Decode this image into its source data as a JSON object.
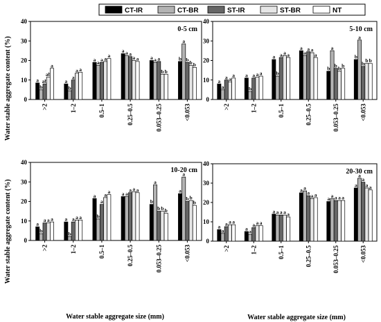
{
  "figure": {
    "ylabel": "Water stable aggregate content (%)",
    "xlabel": "Water stable aggregate size (mm)"
  },
  "legend": [
    {
      "name": "CT-IR",
      "fill": "#000000"
    },
    {
      "name": "CT-BR",
      "fill": "#b3b3b3"
    },
    {
      "name": "ST-IR",
      "fill": "#666666"
    },
    {
      "name": "ST-BR",
      "fill": "#e6e6e6"
    },
    {
      "name": "NT",
      "fill": "#ffffff"
    }
  ],
  "chart_data": [
    {
      "type": "bar",
      "title": "0-5 cm",
      "categories": [
        ">2",
        "1–2",
        "0.5–1",
        "0.25–0.5",
        "0.053–0.25",
        "<0.053"
      ],
      "ylim": [
        0,
        40
      ],
      "yticks": [
        0,
        10,
        20,
        30,
        40
      ],
      "series": [
        {
          "name": "CT-IR",
          "values": [
            8.5,
            8.0,
            19.0,
            23.5,
            20.0,
            19.5
          ],
          "letters": [
            "a",
            "a",
            "a",
            "a",
            "a",
            "b"
          ]
        },
        {
          "name": "CT-BR",
          "values": [
            5.0,
            4.5,
            17.5,
            22.5,
            19.0,
            28.5
          ],
          "letters": [
            "b",
            "b",
            "a",
            "a",
            "a",
            "a"
          ]
        },
        {
          "name": "ST-IR",
          "values": [
            8.0,
            10.0,
            19.0,
            22.0,
            19.5,
            19.0
          ],
          "letters": [
            "ab",
            "a",
            "a",
            "a",
            "a",
            "b"
          ]
        },
        {
          "name": "ST-BR",
          "values": [
            11.5,
            13.5,
            19.5,
            20.0,
            13.0,
            17.5
          ],
          "letters": [
            "ab",
            "a",
            "a",
            "a",
            "b",
            "b"
          ]
        },
        {
          "name": "NT",
          "values": [
            16.0,
            14.0,
            21.0,
            19.5,
            13.0,
            16.5
          ],
          "letters": [
            "a",
            "a",
            "a",
            "a",
            "b",
            "b"
          ]
        }
      ]
    },
    {
      "type": "bar",
      "title": "5-10 cm",
      "categories": [
        ">2",
        "1–2",
        "0.5–1",
        "0.25–0.5",
        "0.053–0.25",
        "<0.053"
      ],
      "ylim": [
        0,
        40
      ],
      "yticks": [
        0,
        10,
        20,
        30,
        40
      ],
      "series": [
        {
          "name": "CT-IR",
          "values": [
            8.0,
            11.0,
            20.5,
            25.0,
            14.5,
            20.5
          ],
          "letters": [
            "a",
            "a",
            "a",
            "a",
            "b",
            "b"
          ]
        },
        {
          "name": "CT-BR",
          "values": [
            5.0,
            4.0,
            12.0,
            22.5,
            25.0,
            30.5
          ],
          "letters": [
            "a",
            "b",
            "b",
            "a",
            "a",
            "a"
          ]
        },
        {
          "name": "ST-IR",
          "values": [
            10.0,
            11.0,
            21.5,
            24.5,
            16.0,
            17.0
          ],
          "letters": [
            "a",
            "a",
            "a",
            "a",
            "b",
            "b"
          ]
        },
        {
          "name": "ST-BR",
          "values": [
            9.0,
            11.5,
            22.5,
            24.0,
            14.5,
            18.5
          ],
          "letters": [
            "a",
            "a",
            "a",
            "a",
            "b",
            "b"
          ]
        },
        {
          "name": "NT",
          "values": [
            11.0,
            12.0,
            21.5,
            21.5,
            16.0,
            18.5
          ],
          "letters": [
            "a",
            "a",
            "a",
            "a",
            "b",
            "b"
          ]
        }
      ]
    },
    {
      "type": "bar",
      "title": "10-20 cm",
      "categories": [
        ">2",
        "1–2",
        "0.5–1",
        "0.25–0.5",
        "0.053–0.25",
        "<0.053"
      ],
      "ylim": [
        0,
        40
      ],
      "yticks": [
        0,
        10,
        20,
        30,
        40
      ],
      "series": [
        {
          "name": "CT-IR",
          "values": [
            7.0,
            9.5,
            21.5,
            22.5,
            18.5,
            24.0
          ],
          "letters": [
            "a",
            "a",
            "a",
            "a",
            "b",
            "a"
          ]
        },
        {
          "name": "CT-BR",
          "values": [
            3.5,
            2.0,
            11.0,
            22.5,
            28.5,
            32.5
          ],
          "letters": [
            "b",
            "b",
            "b",
            "a",
            "a",
            "a"
          ]
        },
        {
          "name": "ST-IR",
          "values": [
            9.0,
            9.5,
            18.5,
            24.5,
            15.0,
            20.0
          ],
          "letters": [
            "a",
            "a",
            "a",
            "a",
            "b",
            "b"
          ]
        },
        {
          "name": "ST-BR",
          "values": [
            9.0,
            10.5,
            22.0,
            25.0,
            15.0,
            20.5
          ],
          "letters": [
            "a",
            "a",
            "a",
            "a",
            "b",
            "b"
          ]
        },
        {
          "name": "NT",
          "values": [
            9.5,
            10.5,
            23.5,
            24.5,
            14.0,
            18.0
          ],
          "letters": [
            "a",
            "a",
            "a",
            "a",
            "b",
            "b"
          ]
        }
      ]
    },
    {
      "type": "bar",
      "title": "20-30 cm",
      "categories": [
        ">2",
        "1–2",
        "0.5–1",
        "0.25–0.5",
        "0.053–0.25",
        "<0.053"
      ],
      "ylim": [
        0,
        40
      ],
      "yticks": [
        0,
        10,
        20,
        30,
        40
      ],
      "series": [
        {
          "name": "CT-IR",
          "values": [
            6.0,
            5.0,
            14.0,
            25.0,
            20.5,
            27.5
          ],
          "letters": [
            "a",
            "a",
            "a",
            "a",
            "a",
            "a"
          ]
        },
        {
          "name": "CT-BR",
          "values": [
            4.0,
            3.5,
            13.5,
            26.0,
            22.0,
            32.5
          ],
          "letters": [
            "a",
            "a",
            "a",
            "a",
            "a",
            "a"
          ]
        },
        {
          "name": "ST-IR",
          "values": [
            7.5,
            7.0,
            13.5,
            23.5,
            21.0,
            30.5
          ],
          "letters": [
            "a",
            "a",
            "a",
            "a",
            "a",
            "a"
          ]
        },
        {
          "name": "ST-BR",
          "values": [
            8.5,
            8.0,
            13.5,
            22.0,
            21.0,
            27.5
          ],
          "letters": [
            "a",
            "a",
            "a",
            "a",
            "a",
            "a"
          ]
        },
        {
          "name": "NT",
          "values": [
            8.5,
            8.0,
            12.5,
            22.5,
            21.0,
            26.5
          ],
          "letters": [
            "a",
            "a",
            "a",
            "a",
            "a",
            "a"
          ]
        }
      ]
    }
  ]
}
